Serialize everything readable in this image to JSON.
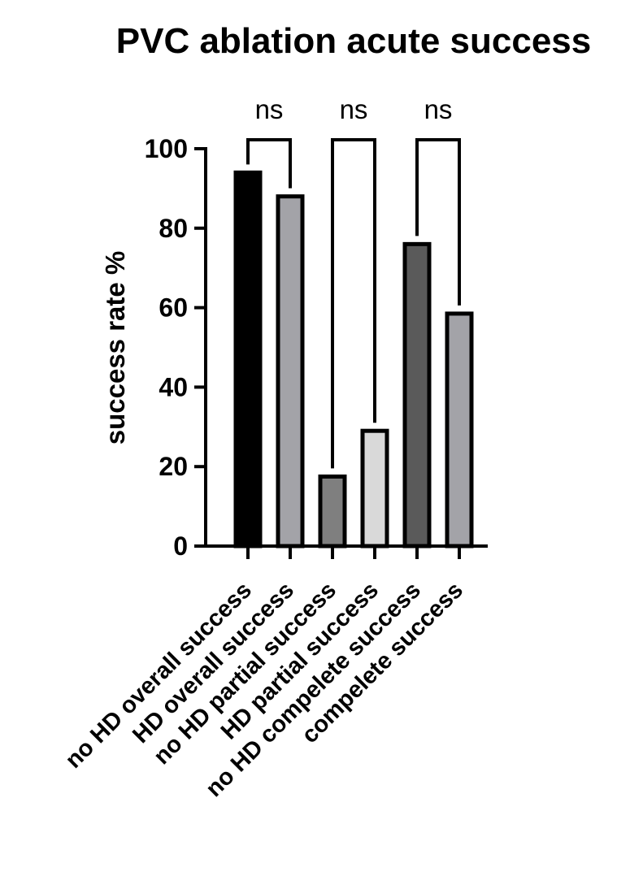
{
  "chart_data": {
    "type": "bar",
    "title": "PVC ablation acute success",
    "ylabel": "success rate %",
    "xlabel": "",
    "ylim": [
      0,
      100
    ],
    "yticks": [
      0,
      20,
      40,
      60,
      80,
      100
    ],
    "categories": [
      "no HD overall success",
      "HD overall success",
      "no HD partial success",
      "HD partial success",
      "no HD compelete success",
      "compelete success"
    ],
    "values": [
      94,
      88,
      17.5,
      29,
      76,
      58.5
    ],
    "bar_colors": [
      "#000000",
      "#a3a3a8",
      "#7f7f7f",
      "#d9d9d9",
      "#5a5a5a",
      "#a3a3a8"
    ],
    "comparisons": [
      {
        "from": 0,
        "to": 1,
        "label": "ns"
      },
      {
        "from": 2,
        "to": 3,
        "label": "ns"
      },
      {
        "from": 4,
        "to": 5,
        "label": "ns"
      }
    ]
  }
}
